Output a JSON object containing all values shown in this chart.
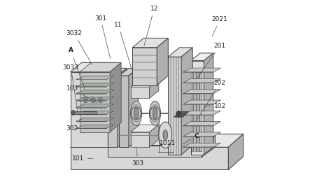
{
  "bg_color": "#ffffff",
  "line_color": "#404040",
  "fill_light": "#d8d8d8",
  "fill_mid": "#b0b0b0",
  "fill_dark": "#888888",
  "label_color": "#222222",
  "figsize": [
    4.43,
    2.7
  ],
  "dpi": 100
}
